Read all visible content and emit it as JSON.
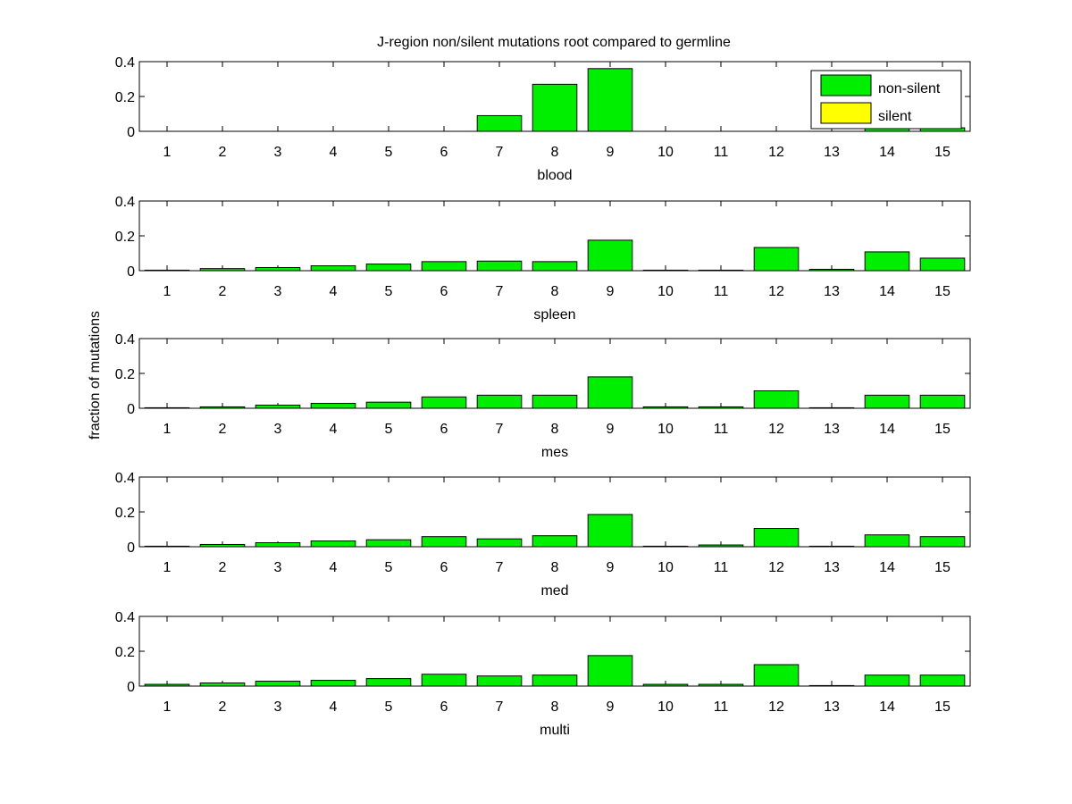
{
  "chart_data": {
    "type": "bar",
    "title": "J-region non/silent mutations root compared to germline",
    "ylabel": "fraction of mutations",
    "ylim": [
      0,
      0.4
    ],
    "yticks": [
      0,
      0.2,
      0.4
    ],
    "ytick_labels": [
      "0",
      "0.2",
      "0.4"
    ],
    "categories": [
      "1",
      "2",
      "3",
      "4",
      "5",
      "6",
      "7",
      "8",
      "9",
      "10",
      "11",
      "12",
      "13",
      "14",
      "15"
    ],
    "legend": {
      "position": "top-right",
      "entries": [
        {
          "label": "non-silent",
          "color": "#00ee00"
        },
        {
          "label": "silent",
          "color": "#ffff00"
        }
      ]
    },
    "colors": {
      "non_silent": "#00ee00",
      "silent": "#ffff00",
      "edge": "#000000"
    },
    "panels": [
      {
        "xlabel": "blood",
        "series": [
          {
            "name": "non-silent",
            "values": [
              0,
              0,
              0,
              0,
              0,
              0,
              0.09,
              0.27,
              0.36,
              0,
              0,
              0,
              0,
              0.02,
              0.02
            ]
          },
          {
            "name": "silent",
            "values": [
              0,
              0,
              0,
              0,
              0,
              0,
              0,
              0,
              0,
              0,
              0,
              0,
              0,
              0,
              0
            ]
          }
        ]
      },
      {
        "xlabel": "spleen",
        "series": [
          {
            "name": "non-silent",
            "values": [
              0.003,
              0.012,
              0.018,
              0.028,
              0.038,
              0.052,
              0.055,
              0.052,
              0.175,
              0.003,
              0.003,
              0.133,
              0.008,
              0.108,
              0.072
            ]
          },
          {
            "name": "silent",
            "values": [
              0,
              0,
              0,
              0,
              0,
              0,
              0,
              0,
              0,
              0,
              0,
              0,
              0,
              0,
              0
            ]
          }
        ]
      },
      {
        "xlabel": "mes",
        "series": [
          {
            "name": "non-silent",
            "values": [
              0.003,
              0.008,
              0.018,
              0.028,
              0.035,
              0.065,
              0.075,
              0.075,
              0.18,
              0.008,
              0.008,
              0.1,
              0.003,
              0.075,
              0.075
            ]
          },
          {
            "name": "silent",
            "values": [
              0,
              0,
              0,
              0,
              0,
              0,
              0,
              0,
              0,
              0,
              0,
              0,
              0,
              0,
              0
            ]
          }
        ]
      },
      {
        "xlabel": "med",
        "series": [
          {
            "name": "non-silent",
            "values": [
              0.003,
              0.013,
              0.023,
              0.033,
              0.04,
              0.058,
              0.045,
              0.063,
              0.185,
              0.003,
              0.01,
              0.105,
              0.003,
              0.068,
              0.058
            ]
          },
          {
            "name": "silent",
            "values": [
              0,
              0,
              0,
              0,
              0,
              0,
              0,
              0,
              0,
              0,
              0,
              0,
              0,
              0,
              0
            ]
          }
        ]
      },
      {
        "xlabel": "multi",
        "series": [
          {
            "name": "non-silent",
            "values": [
              0.01,
              0.018,
              0.028,
              0.033,
              0.043,
              0.068,
              0.058,
              0.063,
              0.175,
              0.01,
              0.01,
              0.123,
              0.003,
              0.063,
              0.063
            ]
          },
          {
            "name": "silent",
            "values": [
              0,
              0,
              0,
              0,
              0,
              0,
              0,
              0,
              0,
              0,
              0,
              0,
              0,
              0,
              0
            ]
          }
        ]
      }
    ]
  }
}
